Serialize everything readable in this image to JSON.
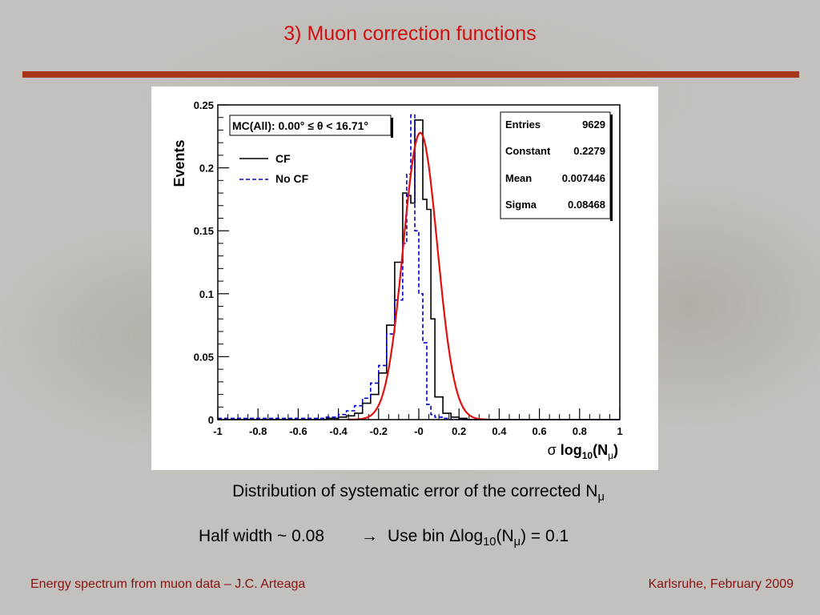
{
  "slide": {
    "title": "3) Muon correction functions",
    "caption_line1": "Distribution of systematic error of the corrected N",
    "caption_line1_sub": "μ",
    "caption_line2_part1": "Half width ~ 0.08",
    "caption_line2_arrow": "→",
    "caption_line2_part2": "Use bin ",
    "caption_line2_delta": "Δ",
    "caption_line2_log": "log",
    "caption_line2_log_sub": "10",
    "caption_line2_n": "(N",
    "caption_line2_n_sub": "μ",
    "caption_line2_end": ") = 0.1",
    "footer_left": "Energy spectrum from muon data – J.C. Arteaga",
    "footer_right": "Karlsruhe,  February 2009"
  },
  "chart_data": {
    "type": "histogram",
    "ylabel": "Events",
    "xlabel_prefix": "σ ",
    "xlabel_main": "log",
    "xlabel_sub": "10",
    "xlabel_n": "(N",
    "xlabel_n_sub": "μ",
    "xlabel_close": ")",
    "xlim": [
      -1,
      1
    ],
    "ylim": [
      0,
      0.25
    ],
    "x_ticks": [
      "-1",
      "-0.8",
      "-0.6",
      "-0.4",
      "-0.2",
      "-0",
      "0.2",
      "0.4",
      "0.6",
      "0.8",
      "1"
    ],
    "y_ticks": [
      "0",
      "0.05",
      "0.1",
      "0.15",
      "0.2",
      "0.25"
    ],
    "selection_label": "MC(All): 0.00° ≤ θ < 16.71°",
    "legend": [
      {
        "name": "CF",
        "style": "solid",
        "color": "#000000"
      },
      {
        "name": "No CF",
        "style": "dashed",
        "color": "#0000cc"
      }
    ],
    "stats": [
      {
        "label": "Entries",
        "value": "9629"
      },
      {
        "label": "Constant",
        "value": "0.2279"
      },
      {
        "label": "Mean",
        "value": "0.007446"
      },
      {
        "label": "Sigma",
        "value": "0.08468"
      }
    ],
    "bin_edges": [
      -1.0,
      -0.46,
      -0.4,
      -0.36,
      -0.32,
      -0.28,
      -0.24,
      -0.2,
      -0.16,
      -0.12,
      -0.08,
      -0.06,
      -0.04,
      -0.02,
      0.0,
      0.02,
      0.04,
      0.06,
      0.08,
      0.12,
      0.16,
      0.2,
      0.24,
      0.28,
      1.0
    ],
    "series": [
      {
        "name": "CF",
        "color": "#000000",
        "values": [
          0.0,
          0.001,
          0.002,
          0.003,
          0.005,
          0.013,
          0.02,
          0.037,
          0.075,
          0.125,
          0.18,
          0.178,
          0.172,
          0.238,
          0.238,
          0.175,
          0.167,
          0.08,
          0.018,
          0.005,
          0.002,
          0.001,
          0.0,
          0.0
        ]
      },
      {
        "name": "No CF",
        "color": "#0000cc",
        "values": [
          0.001,
          0.002,
          0.004,
          0.007,
          0.011,
          0.017,
          0.029,
          0.043,
          0.068,
          0.095,
          0.14,
          0.195,
          0.242,
          0.15,
          0.1,
          0.061,
          0.012,
          0.004,
          0.002,
          0.001,
          0.0,
          0.0,
          0.0,
          0.0
        ]
      }
    ],
    "gaussian_fit": {
      "constant": 0.2279,
      "mean": 0.007446,
      "sigma": 0.08468,
      "color": "#e01010"
    }
  }
}
